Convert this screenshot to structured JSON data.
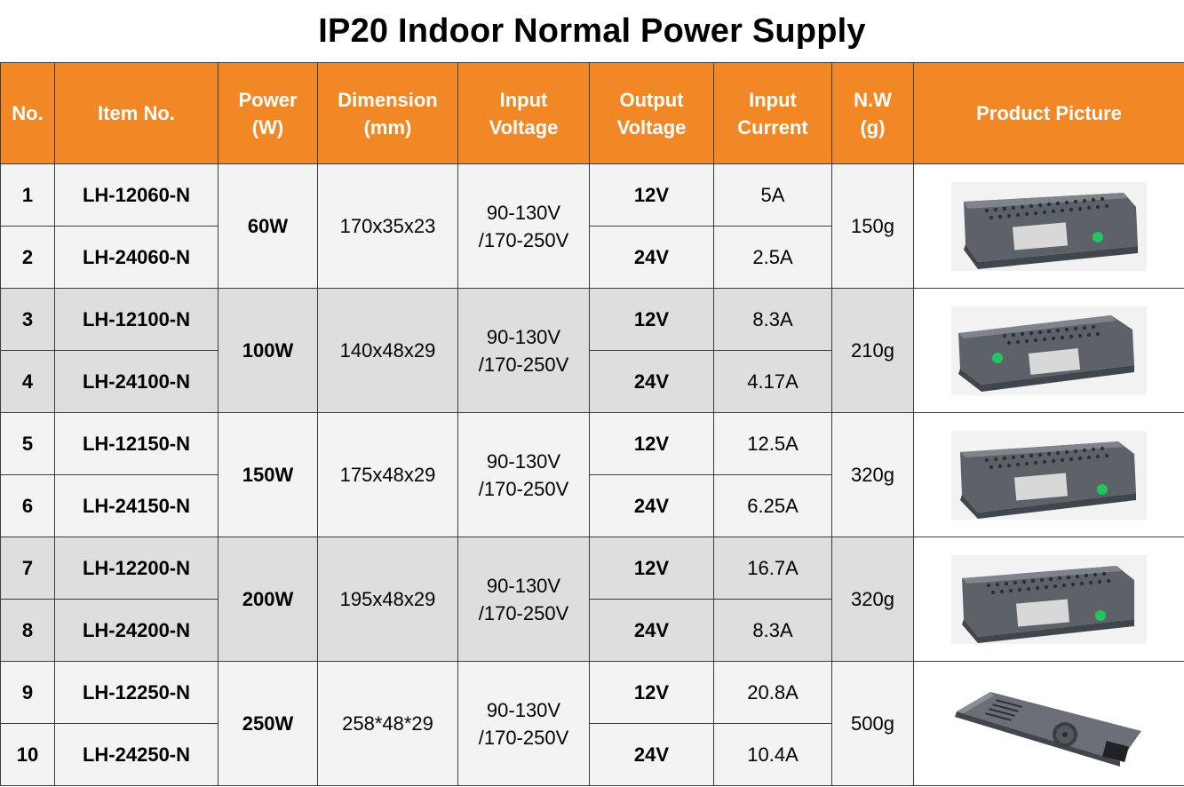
{
  "title": "IP20 Indoor Normal Power Supply",
  "headers": {
    "no": "No.",
    "item": "Item No.",
    "power": [
      "Power",
      "(W)"
    ],
    "dimension": [
      "Dimension",
      "(mm)"
    ],
    "input_voltage": [
      "Input",
      "Voltage"
    ],
    "output_voltage": [
      "Output",
      "Voltage"
    ],
    "input_current": [
      "Input",
      "Current"
    ],
    "nw": [
      "N.W",
      "(g)"
    ],
    "picture": "Product Picture"
  },
  "groups": [
    {
      "power": "60W",
      "dimension": "170x35x23",
      "input_voltage": [
        "90-130V",
        "/170-250V"
      ],
      "nw": "150g",
      "picture_icon": "power-supply-slim-perforated",
      "rows": [
        {
          "no": "1",
          "item": "LH-12060-N",
          "output_voltage": "12V",
          "input_current": "5A"
        },
        {
          "no": "2",
          "item": "LH-24060-N",
          "output_voltage": "24V",
          "input_current": "2.5A"
        }
      ]
    },
    {
      "power": "100W",
      "dimension": "140x48x29",
      "input_voltage": [
        "90-130V",
        "/170-250V"
      ],
      "nw": "210g",
      "picture_icon": "power-supply-slim-perforated",
      "rows": [
        {
          "no": "3",
          "item": "LH-12100-N",
          "output_voltage": "12V",
          "input_current": "8.3A"
        },
        {
          "no": "4",
          "item": "LH-24100-N",
          "output_voltage": "24V",
          "input_current": "4.17A"
        }
      ]
    },
    {
      "power": "150W",
      "dimension": "175x48x29",
      "input_voltage": [
        "90-130V",
        "/170-250V"
      ],
      "nw": "320g",
      "picture_icon": "power-supply-slim-perforated",
      "rows": [
        {
          "no": "5",
          "item": "LH-12150-N",
          "output_voltage": "12V",
          "input_current": "12.5A"
        },
        {
          "no": "6",
          "item": "LH-24150-N",
          "output_voltage": "24V",
          "input_current": "6.25A"
        }
      ]
    },
    {
      "power": "200W",
      "dimension": "195x48x29",
      "input_voltage": [
        "90-130V",
        "/170-250V"
      ],
      "nw": "320g",
      "picture_icon": "power-supply-slim-perforated",
      "rows": [
        {
          "no": "7",
          "item": "LH-12200-N",
          "output_voltage": "12V",
          "input_current": "16.7A"
        },
        {
          "no": "8",
          "item": "LH-24200-N",
          "output_voltage": "24V",
          "input_current": "8.3A"
        }
      ]
    },
    {
      "power": "250W",
      "dimension": "258*48*29",
      "input_voltage": [
        "90-130V",
        "/170-250V"
      ],
      "nw": "500g",
      "picture_icon": "power-supply-long-with-fan",
      "rows": [
        {
          "no": "9",
          "item": "LH-12250-N",
          "output_voltage": "12V",
          "input_current": "20.8A"
        },
        {
          "no": "10",
          "item": "LH-24250-N",
          "output_voltage": "24V",
          "input_current": "10.4A"
        }
      ]
    }
  ],
  "colors": {
    "header_bg": "#f28825",
    "header_text": "#ffffff",
    "row_light": "#f3f3f3",
    "row_dark": "#dedede",
    "led_green": "#22c55e"
  }
}
